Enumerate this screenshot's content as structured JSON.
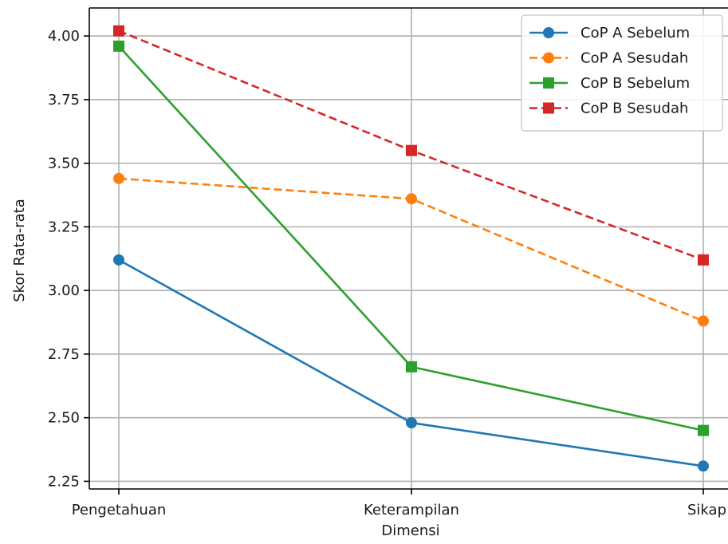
{
  "chart_data": {
    "type": "line",
    "title": "",
    "xlabel": "Dimensi",
    "ylabel": "Skor Rata-rata",
    "categories": [
      "Pengetahuan",
      "Keterampilan",
      "Sikap"
    ],
    "ylim": [
      2.22,
      4.11
    ],
    "yticks": [
      2.25,
      2.5,
      2.75,
      3.0,
      3.25,
      3.5,
      3.75,
      4.0
    ],
    "ytick_labels": [
      "2.25",
      "2.50",
      "2.75",
      "3.00",
      "3.25",
      "3.50",
      "3.75",
      "4.00"
    ],
    "grid": true,
    "legend_position": "top-right",
    "series": [
      {
        "name": "CoP A Sebelum",
        "values": [
          3.12,
          2.48,
          2.31
        ],
        "color": "#1f77b4",
        "linestyle": "solid",
        "marker": "circle"
      },
      {
        "name": "CoP A Sesudah",
        "values": [
          3.44,
          3.36,
          2.88
        ],
        "color": "#ff7f0e",
        "linestyle": "dashed",
        "marker": "circle"
      },
      {
        "name": "CoP B Sebelum",
        "values": [
          3.96,
          2.7,
          2.45
        ],
        "color": "#2ca02c",
        "linestyle": "solid",
        "marker": "square"
      },
      {
        "name": "CoP B Sesudah",
        "values": [
          4.02,
          3.55,
          3.12
        ],
        "color": "#d62728",
        "linestyle": "dashed",
        "marker": "square"
      }
    ]
  }
}
